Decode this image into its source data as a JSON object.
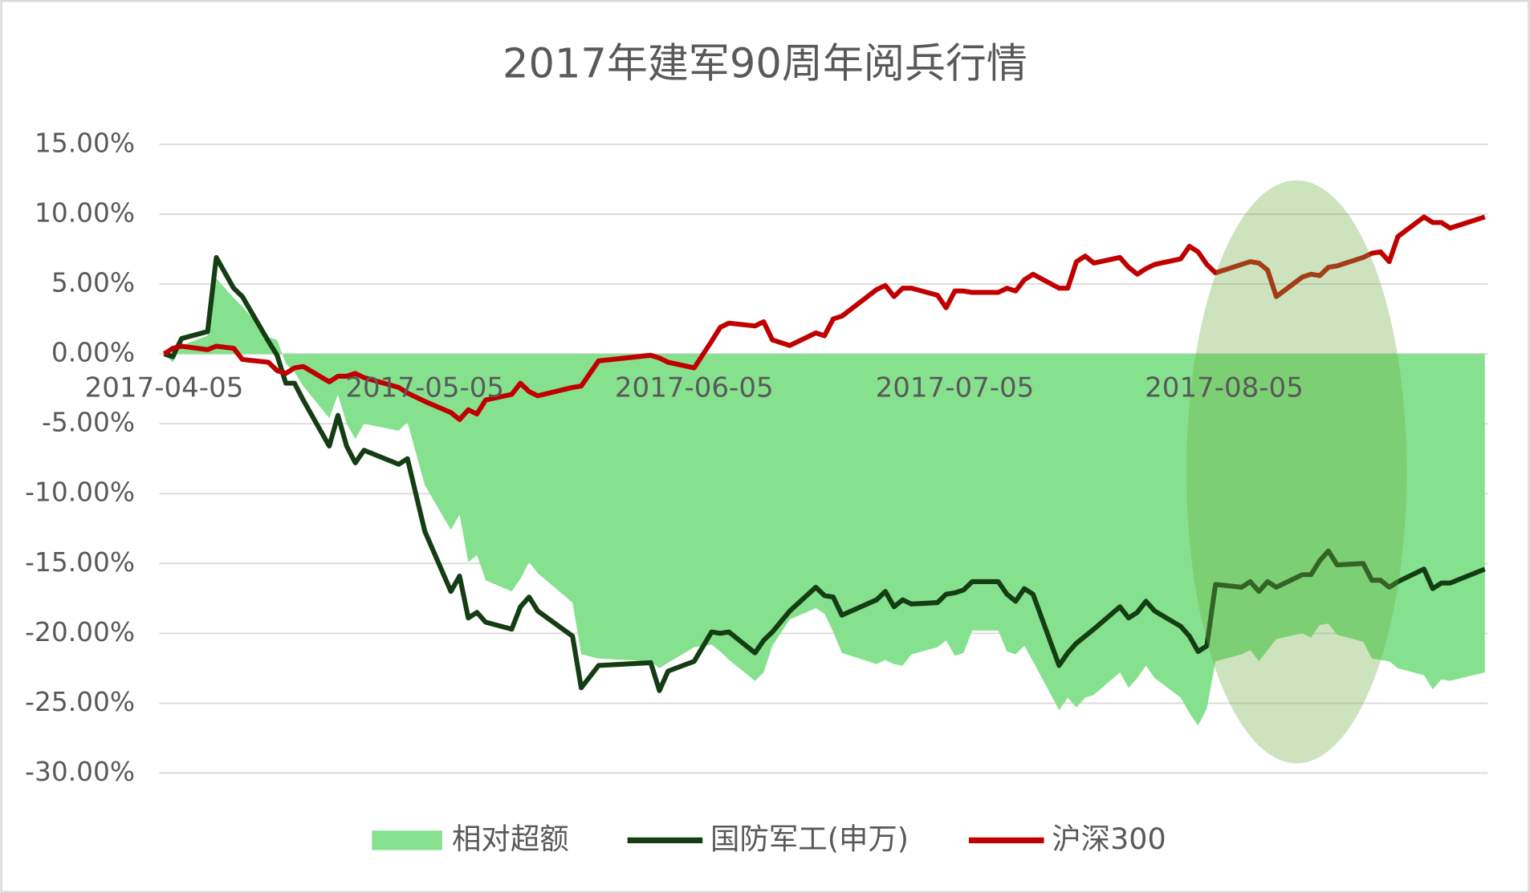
{
  "chart_data": {
    "type": "line",
    "title": "2017年建军90周年阅兵行情",
    "x": [
      "2017-04-05",
      "2017-04-06",
      "2017-04-07",
      "2017-04-10",
      "2017-04-11",
      "2017-04-13",
      "2017-04-14",
      "2017-04-17",
      "2017-04-18",
      "2017-04-19",
      "2017-04-20",
      "2017-04-21",
      "2017-04-24",
      "2017-04-25",
      "2017-04-26",
      "2017-04-27",
      "2017-04-28",
      "2017-05-02",
      "2017-05-03",
      "2017-05-05",
      "2017-05-08",
      "2017-05-09",
      "2017-05-10",
      "2017-05-11",
      "2017-05-12",
      "2017-05-15",
      "2017-05-16",
      "2017-05-17",
      "2017-05-18",
      "2017-05-22",
      "2017-05-23",
      "2017-05-25",
      "2017-05-31",
      "2017-06-01",
      "2017-06-02",
      "2017-06-05",
      "2017-06-07",
      "2017-06-08",
      "2017-06-09",
      "2017-06-12",
      "2017-06-13",
      "2017-06-14",
      "2017-06-16",
      "2017-06-19",
      "2017-06-20",
      "2017-06-21",
      "2017-06-22",
      "2017-06-26",
      "2017-06-27",
      "2017-06-28",
      "2017-06-29",
      "2017-06-30",
      "2017-07-03",
      "2017-07-04",
      "2017-07-05",
      "2017-07-06",
      "2017-07-07",
      "2017-07-10",
      "2017-07-11",
      "2017-07-12",
      "2017-07-13",
      "2017-07-14",
      "2017-07-17",
      "2017-07-18",
      "2017-07-19",
      "2017-07-20",
      "2017-07-21",
      "2017-07-24",
      "2017-07-25",
      "2017-07-26",
      "2017-07-27",
      "2017-07-28",
      "2017-07-31",
      "2017-08-01",
      "2017-08-02",
      "2017-08-03",
      "2017-08-04",
      "2017-08-07",
      "2017-08-08",
      "2017-08-09",
      "2017-08-10",
      "2017-08-11",
      "2017-08-14",
      "2017-08-15",
      "2017-08-16",
      "2017-08-17",
      "2017-08-18",
      "2017-08-21",
      "2017-08-22",
      "2017-08-23",
      "2017-08-24",
      "2017-08-25",
      "2017-08-28",
      "2017-08-29",
      "2017-08-30",
      "2017-08-31",
      "2017-09-04"
    ],
    "series": [
      {
        "name": "相对超额",
        "type": "area",
        "color": "#86e18e",
        "values": [
          0,
          -0.6,
          0.6,
          1.3,
          5.4,
          4.0,
          3.4,
          1.2,
          1.0,
          -0.7,
          -1.3,
          -2.3,
          -4.6,
          -2.9,
          -5.0,
          -6.1,
          -5.0,
          -5.5,
          -4.9,
          -9.4,
          -12.6,
          -11.5,
          -14.9,
          -14.4,
          -16.2,
          -17.0,
          -16.1,
          -14.9,
          -15.7,
          -17.8,
          -21.5,
          -21.8,
          -22.0,
          -22.5,
          -22.1,
          -21.0,
          -20.8,
          -21.3,
          -21.9,
          -23.4,
          -22.8,
          -20.9,
          -19.0,
          -18.2,
          -18.6,
          -19.9,
          -21.4,
          -22.2,
          -21.9,
          -22.2,
          -22.3,
          -21.5,
          -21.0,
          -20.5,
          -21.6,
          -21.4,
          -19.8,
          -19.8,
          -21.3,
          -21.5,
          -20.9,
          -22.0,
          -25.5,
          -24.6,
          -25.3,
          -24.6,
          -24.4,
          -22.8,
          -23.9,
          -23.2,
          -22.3,
          -23.2,
          -24.6,
          -25.7,
          -26.6,
          -25.4,
          -22.0,
          -21.5,
          -21.2,
          -22.0,
          -21.2,
          -20.4,
          -20.0,
          -20.3,
          -19.4,
          -19.3,
          -20.1,
          -20.6,
          -21.8,
          -21.9,
          -22.0,
          -22.5,
          -23.0,
          -24.0,
          -23.3,
          -23.4,
          -22.8
        ]
      },
      {
        "name": "国防军工(申万)",
        "type": "line",
        "color": "#143d14",
        "values": [
          0,
          -0.2,
          1.1,
          1.6,
          6.9,
          4.7,
          4.1,
          0.9,
          -0.1,
          -2.1,
          -2.1,
          -3.3,
          -6.6,
          -4.4,
          -6.6,
          -7.8,
          -6.9,
          -7.9,
          -7.5,
          -12.7,
          -17.0,
          -15.9,
          -18.9,
          -18.5,
          -19.2,
          -19.7,
          -18.1,
          -17.4,
          -18.4,
          -20.2,
          -23.9,
          -22.3,
          -22.1,
          -24.1,
          -22.7,
          -22.0,
          -19.9,
          -20.0,
          -19.9,
          -21.4,
          -20.5,
          -19.9,
          -18.4,
          -16.7,
          -17.3,
          -17.4,
          -18.7,
          -17.6,
          -17.0,
          -18.1,
          -17.6,
          -17.9,
          -17.8,
          -17.2,
          -17.1,
          -16.9,
          -16.3,
          -16.3,
          -17.2,
          -17.7,
          -16.8,
          -17.2,
          -22.3,
          -21.4,
          -20.7,
          -20.2,
          -19.7,
          -18.1,
          -18.9,
          -18.5,
          -17.7,
          -18.4,
          -19.5,
          -20.2,
          -21.3,
          -20.9,
          -16.5,
          -16.7,
          -16.3,
          -17.0,
          -16.3,
          -16.7,
          -15.8,
          -15.8,
          -14.8,
          -14.1,
          -15.1,
          -15.0,
          -16.2,
          -16.2,
          -16.7,
          -16.3,
          -15.4,
          -16.8,
          -16.4,
          -16.4,
          -15.4
        ]
      },
      {
        "name": "沪深300",
        "type": "line",
        "color": "#c00000",
        "values": [
          0,
          0.4,
          0.55,
          0.3,
          0.55,
          0.4,
          -0.4,
          -0.6,
          -1.2,
          -1.4,
          -1.0,
          -0.9,
          -2.0,
          -1.6,
          -1.6,
          -1.4,
          -1.7,
          -2.4,
          -2.8,
          -3.4,
          -4.2,
          -4.7,
          -4.0,
          -4.3,
          -3.3,
          -2.9,
          -2.1,
          -2.7,
          -3.0,
          -2.4,
          -2.3,
          -0.5,
          -0.1,
          -0.3,
          -0.6,
          -1.0,
          0.9,
          1.9,
          2.2,
          2.0,
          2.3,
          1.0,
          0.6,
          1.5,
          1.3,
          2.5,
          2.7,
          4.6,
          4.9,
          4.1,
          4.7,
          4.7,
          4.2,
          3.3,
          4.5,
          4.5,
          4.4,
          4.4,
          4.7,
          4.5,
          5.3,
          5.7,
          4.7,
          4.7,
          6.6,
          7.0,
          6.5,
          6.9,
          6.2,
          5.7,
          6.1,
          6.4,
          6.8,
          7.7,
          7.3,
          6.4,
          5.8,
          6.4,
          6.6,
          6.5,
          6.0,
          4.1,
          5.5,
          5.7,
          5.6,
          6.2,
          6.3,
          6.9,
          7.2,
          7.3,
          6.6,
          8.4,
          9.8,
          9.4,
          9.4,
          9.0,
          9.8
        ]
      }
    ],
    "xlim": [
      "2017-04-05",
      "2017-09-04"
    ],
    "xticks": [
      "2017-04-05",
      "2017-05-05",
      "2017-06-05",
      "2017-07-05",
      "2017-08-05"
    ],
    "ylim": [
      -30,
      15
    ],
    "yticks": [
      {
        "value": 15,
        "label": "15.00%"
      },
      {
        "value": 10,
        "label": "10.00%"
      },
      {
        "value": 5,
        "label": "5.00%"
      },
      {
        "value": 0,
        "label": "0.00%"
      },
      {
        "value": -5,
        "label": "-5.00%"
      },
      {
        "value": -10,
        "label": "-10.00%"
      },
      {
        "value": -15,
        "label": "-15.00%"
      },
      {
        "value": -20,
        "label": "-20.00%"
      },
      {
        "value": -25,
        "label": "-25.00%"
      },
      {
        "value": -30,
        "label": "-30.00%"
      }
    ],
    "grid": true,
    "legend": "bottom"
  }
}
